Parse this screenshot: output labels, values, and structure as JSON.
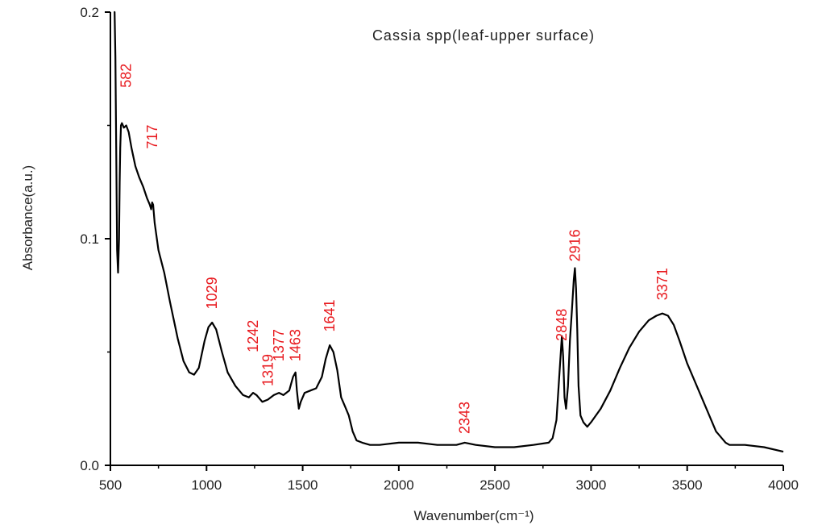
{
  "chart_data": {
    "type": "line",
    "title": "Cassia spp(leaf-upper surface)",
    "xlabel": "Wavenumber(cm⁻¹)",
    "ylabel": "Absorbance(a.u.)",
    "xlim": [
      500,
      4000
    ],
    "ylim": [
      0.0,
      0.2
    ],
    "x_ticks": [
      500,
      1000,
      1500,
      2000,
      2500,
      3000,
      3500,
      4000
    ],
    "x_tick_labels": [
      "500",
      "1000",
      "1500",
      "2000",
      "2500",
      "3000",
      "3500",
      "4000"
    ],
    "y_ticks": [
      0.0,
      0.1,
      0.2
    ],
    "y_tick_labels": [
      "0.0",
      "0.1",
      "0.2"
    ],
    "grid": false,
    "legend": "none",
    "line_color": "#000000",
    "annotation_color": "#e8191e",
    "series": [
      {
        "x": [
          518,
          522,
          526,
          530,
          535,
          540,
          545,
          548,
          551,
          555,
          560,
          570,
          582,
          595,
          610,
          630,
          650,
          670,
          690,
          705,
          712,
          717,
          722,
          730,
          750,
          780,
          810,
          850,
          880,
          910,
          935,
          960,
          990,
          1010,
          1029,
          1050,
          1080,
          1110,
          1150,
          1190,
          1220,
          1242,
          1260,
          1290,
          1319,
          1350,
          1377,
          1400,
          1430,
          1450,
          1463,
          1470,
          1480,
          1490,
          1510,
          1540,
          1570,
          1600,
          1620,
          1641,
          1660,
          1680,
          1700,
          1720,
          1740,
          1760,
          1780,
          1810,
          1850,
          1900,
          2000,
          2100,
          2200,
          2300,
          2343,
          2400,
          2500,
          2600,
          2700,
          2780,
          2800,
          2820,
          2835,
          2848,
          2855,
          2862,
          2870,
          2880,
          2890,
          2900,
          2910,
          2916,
          2922,
          2928,
          2935,
          2945,
          2960,
          2980,
          3000,
          3050,
          3100,
          3150,
          3200,
          3250,
          3300,
          3340,
          3371,
          3400,
          3430,
          3460,
          3500,
          3550,
          3600,
          3650,
          3700,
          3720,
          3800,
          3900,
          4000
        ],
        "y": [
          0.2,
          0.2,
          0.18,
          0.14,
          0.095,
          0.085,
          0.1,
          0.125,
          0.14,
          0.15,
          0.151,
          0.149,
          0.15,
          0.147,
          0.14,
          0.132,
          0.127,
          0.123,
          0.118,
          0.115,
          0.113,
          0.116,
          0.115,
          0.107,
          0.095,
          0.085,
          0.072,
          0.056,
          0.046,
          0.041,
          0.04,
          0.043,
          0.055,
          0.061,
          0.063,
          0.06,
          0.05,
          0.041,
          0.035,
          0.031,
          0.03,
          0.032,
          0.031,
          0.028,
          0.029,
          0.031,
          0.032,
          0.031,
          0.033,
          0.039,
          0.041,
          0.033,
          0.025,
          0.028,
          0.032,
          0.033,
          0.034,
          0.039,
          0.047,
          0.053,
          0.05,
          0.042,
          0.03,
          0.026,
          0.022,
          0.015,
          0.011,
          0.01,
          0.009,
          0.009,
          0.01,
          0.01,
          0.009,
          0.009,
          0.01,
          0.009,
          0.008,
          0.008,
          0.009,
          0.01,
          0.012,
          0.02,
          0.04,
          0.057,
          0.048,
          0.03,
          0.025,
          0.035,
          0.055,
          0.068,
          0.082,
          0.087,
          0.078,
          0.06,
          0.035,
          0.022,
          0.019,
          0.017,
          0.019,
          0.025,
          0.033,
          0.043,
          0.052,
          0.059,
          0.064,
          0.066,
          0.067,
          0.066,
          0.062,
          0.055,
          0.045,
          0.035,
          0.025,
          0.015,
          0.01,
          0.009,
          0.009,
          0.008,
          0.006
        ]
      }
    ],
    "annotations": [
      {
        "label": "582",
        "x": 582,
        "y": 0.172
      },
      {
        "label": "717",
        "x": 717,
        "y": 0.145
      },
      {
        "label": "1029",
        "x": 1029,
        "y": 0.076
      },
      {
        "label": "1242",
        "x": 1242,
        "y": 0.057
      },
      {
        "label": "1319",
        "x": 1319,
        "y": 0.042
      },
      {
        "label": "1377",
        "x": 1377,
        "y": 0.053
      },
      {
        "label": "1463",
        "x": 1463,
        "y": 0.053
      },
      {
        "label": "1641",
        "x": 1641,
        "y": 0.066
      },
      {
        "label": "2343",
        "x": 2343,
        "y": 0.021
      },
      {
        "label": "2848",
        "x": 2848,
        "y": 0.062
      },
      {
        "label": "2916",
        "x": 2916,
        "y": 0.097
      },
      {
        "label": "3371",
        "x": 3371,
        "y": 0.08
      }
    ]
  }
}
